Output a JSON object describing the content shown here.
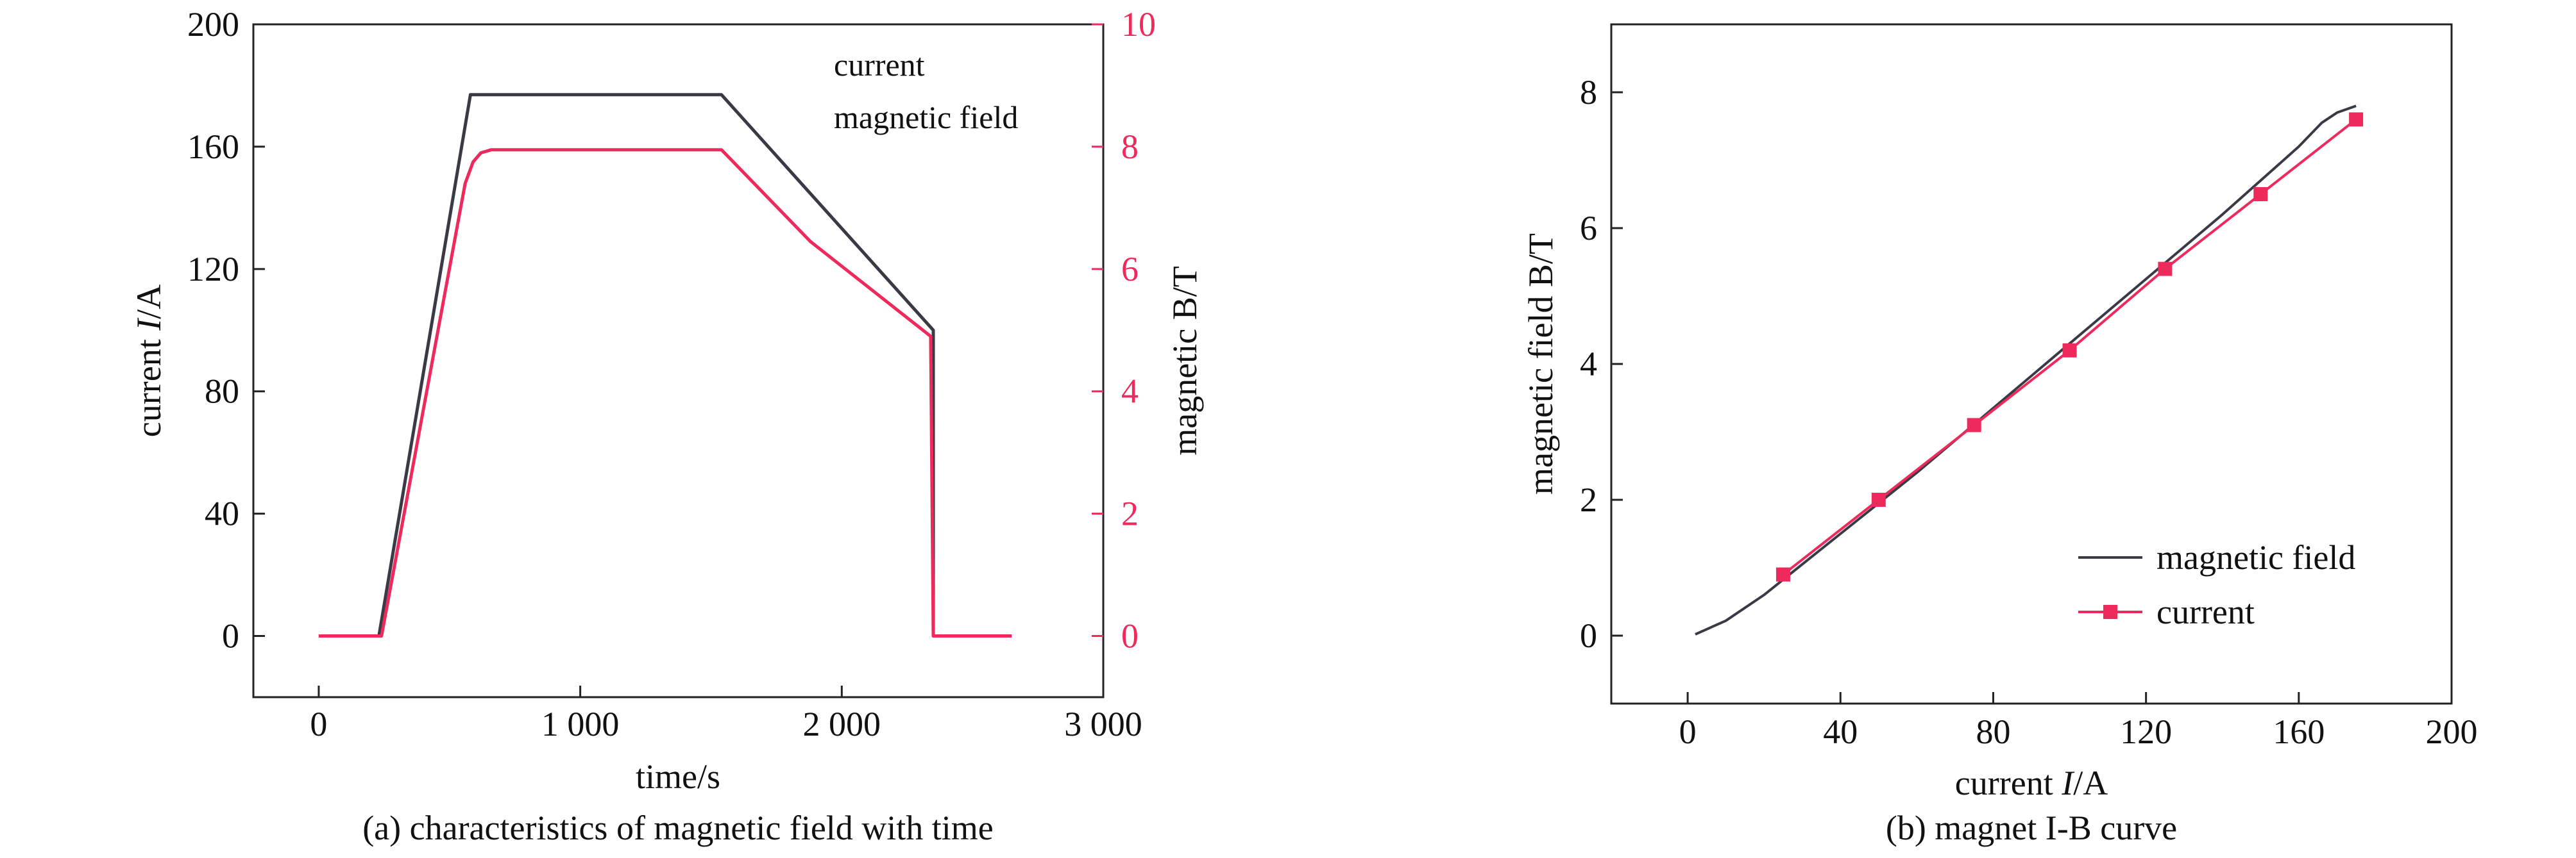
{
  "chart_data": [
    {
      "type": "line",
      "caption": "(a) characteristics of magnetic field with time",
      "xlabel": "time/s",
      "ylabel_left": {
        "pre": "current ",
        "italic": "I",
        "post": "/A"
      },
      "ylabel_right": "magnetic B/T",
      "xlim": [
        -250,
        3000
      ],
      "ylim_left": [
        -20,
        200
      ],
      "ylim_right": [
        -1,
        10
      ],
      "x_ticks": [
        0,
        1000,
        2000,
        3000
      ],
      "x_tick_labels": [
        "0",
        "1 000",
        "2 000",
        "3 000"
      ],
      "y_left_ticks": [
        0,
        40,
        80,
        120,
        160,
        200
      ],
      "y_left_tick_labels": [
        "0",
        "40",
        "80",
        "120",
        "160",
        "200"
      ],
      "y_right_ticks": [
        0,
        2,
        4,
        6,
        8,
        10
      ],
      "y_right_tick_labels": [
        "0",
        "2",
        "4",
        "6",
        "8",
        "10"
      ],
      "legend": [
        "current",
        "magnetic field"
      ],
      "legend_position": "top-right",
      "colors": {
        "axes": "#222222",
        "current": "#3a3a46",
        "field": "#ee2a5c"
      },
      "series": [
        {
          "name": "current",
          "axis": "left",
          "color": "#3a3a46",
          "x": [
            0,
            230,
            580,
            1540,
            2350,
            2350,
            2360
          ],
          "y": [
            0,
            0,
            177,
            177,
            100,
            0,
            0
          ]
        },
        {
          "name": "magnetic field",
          "axis": "right",
          "color": "#ee2a5c",
          "x": [
            0,
            240,
            560,
            590,
            620,
            660,
            720,
            1540,
            1880,
            2340,
            2350,
            2360,
            2650
          ],
          "y": [
            0,
            0,
            7.4,
            7.75,
            7.9,
            7.95,
            7.95,
            7.95,
            6.45,
            4.9,
            0,
            0,
            0
          ]
        }
      ]
    },
    {
      "type": "line",
      "caption": "(b) magnet I-B curve",
      "xlabel": {
        "pre": "current ",
        "italic": "I",
        "post": "/A"
      },
      "ylabel": "magnetic field B/T",
      "xlim": [
        -20,
        200
      ],
      "ylim": [
        -1,
        9
      ],
      "x_ticks": [
        0,
        40,
        80,
        120,
        160,
        200
      ],
      "x_tick_labels": [
        "0",
        "40",
        "80",
        "120",
        "160",
        "200"
      ],
      "y_ticks": [
        0,
        2,
        4,
        6,
        8
      ],
      "y_tick_labels": [
        "0",
        "2",
        "4",
        "6",
        "8"
      ],
      "legend": [
        "magnetic field",
        "current"
      ],
      "legend_position": "bottom-right",
      "colors": {
        "axes": "#222222",
        "magnetic field": "#3a3a46",
        "current": "#ee2a5c"
      },
      "series": [
        {
          "name": "magnetic field",
          "color": "#3a3a46",
          "marker": "none",
          "x": [
            2,
            10,
            20,
            30,
            40,
            60,
            80,
            100,
            120,
            140,
            160,
            166,
            170,
            175
          ],
          "y": [
            0.02,
            0.22,
            0.6,
            1.05,
            1.5,
            2.4,
            3.35,
            4.3,
            5.25,
            6.2,
            7.2,
            7.55,
            7.7,
            7.8
          ]
        },
        {
          "name": "current",
          "color": "#ee2a5c",
          "marker": "square",
          "x": [
            25,
            50,
            75,
            100,
            125,
            150,
            175
          ],
          "y": [
            0.9,
            2.0,
            3.1,
            4.2,
            5.4,
            6.5,
            7.6
          ]
        }
      ]
    }
  ]
}
